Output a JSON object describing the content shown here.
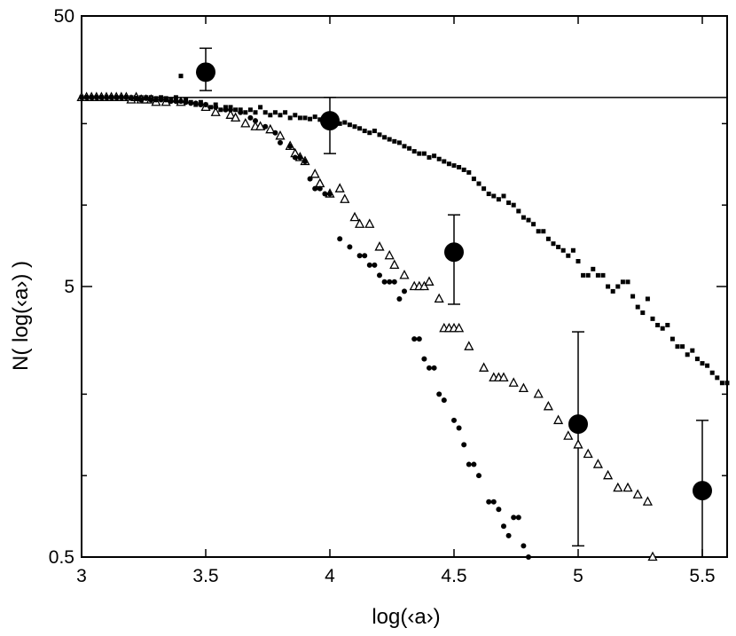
{
  "chart_data": {
    "type": "scatter",
    "xlabel": "log(‹a›)",
    "ylabel": "N( log(‹a›) )",
    "xlim": [
      3,
      5.6
    ],
    "ylim": [
      0.5,
      50
    ],
    "yscale": "log",
    "grid": false,
    "legend": "none",
    "x_ticks": [
      {
        "value": 3,
        "label": "3"
      },
      {
        "value": 3.5,
        "label": "3.5"
      },
      {
        "value": 4,
        "label": "4"
      },
      {
        "value": 4.5,
        "label": "4.5"
      },
      {
        "value": 5,
        "label": "5"
      },
      {
        "value": 5.5,
        "label": "5.5"
      }
    ],
    "y_ticks_major": [
      {
        "value": 0.5,
        "label": "0.5"
      },
      {
        "value": 5,
        "label": "5"
      },
      {
        "value": 50,
        "label": "50"
      }
    ],
    "y_ticks_minor": [
      1,
      2,
      10,
      20
    ],
    "reference_line": {
      "y": 25
    },
    "series": [
      {
        "marker": "large-circle-errorbar",
        "color": "#000000",
        "points": [
          {
            "x": 3.5,
            "y": 31,
            "ylo": 26.5,
            "yhi": 38
          },
          {
            "x": 4.0,
            "y": 20.5,
            "ylo": 15.5,
            "yhi": 25.0
          },
          {
            "x": 4.5,
            "y": 6.7,
            "ylo": 4.3,
            "yhi": 9.2
          },
          {
            "x": 5.0,
            "y": 1.55,
            "ylo": 0.55,
            "yhi": 3.4
          },
          {
            "x": 5.5,
            "y": 0.88,
            "ylo": 0.3,
            "yhi": 1.6
          }
        ]
      },
      {
        "marker": "small-square",
        "color": "#000000",
        "points": [
          [
            3.0,
            25
          ],
          [
            3.02,
            25
          ],
          [
            3.04,
            25
          ],
          [
            3.06,
            25
          ],
          [
            3.08,
            25
          ],
          [
            3.1,
            25
          ],
          [
            3.12,
            25
          ],
          [
            3.14,
            25
          ],
          [
            3.16,
            25
          ],
          [
            3.18,
            25
          ],
          [
            3.2,
            25
          ],
          [
            3.22,
            25
          ],
          [
            3.24,
            25
          ],
          [
            3.26,
            25
          ],
          [
            3.28,
            25
          ],
          [
            3.3,
            24.8
          ],
          [
            3.32,
            25
          ],
          [
            3.34,
            24.8
          ],
          [
            3.36,
            24.5
          ],
          [
            3.38,
            25
          ],
          [
            3.4,
            30
          ],
          [
            3.42,
            24.5
          ],
          [
            3.44,
            24
          ],
          [
            3.46,
            23.5
          ],
          [
            3.48,
            24
          ],
          [
            3.5,
            23.5
          ],
          [
            3.52,
            23
          ],
          [
            3.54,
            23.5
          ],
          [
            3.56,
            22.5
          ],
          [
            3.58,
            23
          ],
          [
            3.6,
            23
          ],
          [
            3.62,
            22.5
          ],
          [
            3.64,
            22.5
          ],
          [
            3.66,
            22
          ],
          [
            3.68,
            22.5
          ],
          [
            3.7,
            22
          ],
          [
            3.72,
            23
          ],
          [
            3.74,
            22
          ],
          [
            3.76,
            21.5
          ],
          [
            3.78,
            22
          ],
          [
            3.8,
            21.5
          ],
          [
            3.82,
            22
          ],
          [
            3.84,
            21
          ],
          [
            3.86,
            21.5
          ],
          [
            3.88,
            21
          ],
          [
            3.9,
            21
          ],
          [
            3.92,
            20.8
          ],
          [
            3.94,
            21.2
          ],
          [
            3.96,
            20.7
          ],
          [
            3.98,
            20.5
          ],
          [
            4.0,
            20
          ],
          [
            4.02,
            20.5
          ],
          [
            4.04,
            20
          ],
          [
            4.06,
            20.2
          ],
          [
            4.08,
            19.8
          ],
          [
            4.1,
            19.5
          ],
          [
            4.12,
            19.2
          ],
          [
            4.14,
            18.8
          ],
          [
            4.16,
            18.5
          ],
          [
            4.18,
            18.8
          ],
          [
            4.2,
            18.2
          ],
          [
            4.22,
            17.8
          ],
          [
            4.24,
            17.5
          ],
          [
            4.26,
            17.2
          ],
          [
            4.28,
            17
          ],
          [
            4.3,
            16.5
          ],
          [
            4.32,
            16.2
          ],
          [
            4.34,
            15.8
          ],
          [
            4.36,
            15.5
          ],
          [
            4.38,
            15.5
          ],
          [
            4.4,
            15
          ],
          [
            4.42,
            15.2
          ],
          [
            4.44,
            14.8
          ],
          [
            4.46,
            14.5
          ],
          [
            4.48,
            14.2
          ],
          [
            4.5,
            14
          ],
          [
            4.52,
            13.8
          ],
          [
            4.54,
            13.5
          ],
          [
            4.56,
            13.2
          ],
          [
            4.58,
            12.5
          ],
          [
            4.6,
            12
          ],
          [
            4.62,
            11.5
          ],
          [
            4.64,
            11
          ],
          [
            4.66,
            10.8
          ],
          [
            4.68,
            10.5
          ],
          [
            4.7,
            10.8
          ],
          [
            4.72,
            10.2
          ],
          [
            4.74,
            10
          ],
          [
            4.76,
            9.5
          ],
          [
            4.78,
            9
          ],
          [
            4.8,
            8.8
          ],
          [
            4.82,
            8.5
          ],
          [
            4.84,
            8
          ],
          [
            4.86,
            8
          ],
          [
            4.88,
            7.5
          ],
          [
            4.9,
            7.2
          ],
          [
            4.92,
            7
          ],
          [
            4.94,
            6.8
          ],
          [
            4.96,
            6.5
          ],
          [
            4.98,
            6.8
          ],
          [
            5.0,
            6.2
          ],
          [
            5.02,
            5.5
          ],
          [
            5.04,
            5.5
          ],
          [
            5.06,
            5.8
          ],
          [
            5.08,
            5.5
          ],
          [
            5.1,
            5.5
          ],
          [
            5.12,
            5
          ],
          [
            5.14,
            4.8
          ],
          [
            5.16,
            5
          ],
          [
            5.18,
            5.2
          ],
          [
            5.2,
            5.2
          ],
          [
            5.22,
            4.6
          ],
          [
            5.24,
            4.2
          ],
          [
            5.26,
            4
          ],
          [
            5.28,
            4.5
          ],
          [
            5.3,
            3.8
          ],
          [
            5.32,
            3.6
          ],
          [
            5.34,
            3.5
          ],
          [
            5.36,
            3.6
          ],
          [
            5.38,
            3.2
          ],
          [
            5.4,
            3
          ],
          [
            5.42,
            3
          ],
          [
            5.44,
            2.8
          ],
          [
            5.46,
            2.9
          ],
          [
            5.48,
            2.7
          ],
          [
            5.5,
            2.6
          ],
          [
            5.52,
            2.55
          ],
          [
            5.54,
            2.4
          ],
          [
            5.56,
            2.3
          ],
          [
            5.58,
            2.2
          ],
          [
            5.6,
            2.2
          ]
        ]
      },
      {
        "marker": "open-triangle",
        "color": "#000000",
        "points": [
          [
            3.0,
            25
          ],
          [
            3.02,
            25
          ],
          [
            3.04,
            25
          ],
          [
            3.06,
            25
          ],
          [
            3.08,
            25
          ],
          [
            3.1,
            25
          ],
          [
            3.12,
            25
          ],
          [
            3.14,
            25
          ],
          [
            3.16,
            25
          ],
          [
            3.18,
            25
          ],
          [
            3.2,
            24.5
          ],
          [
            3.22,
            25
          ],
          [
            3.24,
            24.5
          ],
          [
            3.26,
            24.5
          ],
          [
            3.28,
            24.5
          ],
          [
            3.3,
            24
          ],
          [
            3.34,
            24
          ],
          [
            3.4,
            24
          ],
          [
            3.5,
            23
          ],
          [
            3.54,
            22
          ],
          [
            3.6,
            21.5
          ],
          [
            3.62,
            21
          ],
          [
            3.66,
            20
          ],
          [
            3.7,
            19.5
          ],
          [
            3.72,
            19.5
          ],
          [
            3.76,
            19
          ],
          [
            3.8,
            18
          ],
          [
            3.84,
            16.5
          ],
          [
            3.86,
            15.5
          ],
          [
            3.88,
            15
          ],
          [
            3.9,
            14.5
          ],
          [
            3.94,
            13
          ],
          [
            3.96,
            12
          ],
          [
            4.0,
            11
          ],
          [
            4.04,
            11.5
          ],
          [
            4.06,
            10.5
          ],
          [
            4.1,
            9
          ],
          [
            4.12,
            8.5
          ],
          [
            4.16,
            8.5
          ],
          [
            4.2,
            7
          ],
          [
            4.24,
            6.5
          ],
          [
            4.26,
            6
          ],
          [
            4.3,
            5.5
          ],
          [
            4.34,
            5
          ],
          [
            4.36,
            5
          ],
          [
            4.38,
            5
          ],
          [
            4.4,
            5.2
          ],
          [
            4.44,
            4.5
          ],
          [
            4.46,
            3.5
          ],
          [
            4.48,
            3.5
          ],
          [
            4.5,
            3.5
          ],
          [
            4.52,
            3.5
          ],
          [
            4.56,
            3
          ],
          [
            4.62,
            2.5
          ],
          [
            4.66,
            2.3
          ],
          [
            4.68,
            2.3
          ],
          [
            4.7,
            2.3
          ],
          [
            4.74,
            2.2
          ],
          [
            4.78,
            2.1
          ],
          [
            4.84,
            2.0
          ],
          [
            4.88,
            1.8
          ],
          [
            4.92,
            1.6
          ],
          [
            4.96,
            1.4
          ],
          [
            5.0,
            1.3
          ],
          [
            5.04,
            1.2
          ],
          [
            5.08,
            1.1
          ],
          [
            5.12,
            1.0
          ],
          [
            5.16,
            0.9
          ],
          [
            5.2,
            0.9
          ],
          [
            5.24,
            0.85
          ],
          [
            5.28,
            0.8
          ],
          [
            5.3,
            0.5
          ]
        ]
      },
      {
        "marker": "small-filled-circle",
        "color": "#000000",
        "points": [
          [
            3.0,
            25
          ],
          [
            3.02,
            25
          ],
          [
            3.04,
            25
          ],
          [
            3.06,
            25
          ],
          [
            3.08,
            25
          ],
          [
            3.1,
            25
          ],
          [
            3.12,
            25
          ],
          [
            3.14,
            25
          ],
          [
            3.16,
            25
          ],
          [
            3.18,
            25
          ],
          [
            3.2,
            24.8
          ],
          [
            3.22,
            24.8
          ],
          [
            3.24,
            24.5
          ],
          [
            3.26,
            24.8
          ],
          [
            3.28,
            24.5
          ],
          [
            3.3,
            24.5
          ],
          [
            3.32,
            24.5
          ],
          [
            3.34,
            24.5
          ],
          [
            3.36,
            24.2
          ],
          [
            3.38,
            24.2
          ],
          [
            3.4,
            24.2
          ],
          [
            3.42,
            24
          ],
          [
            3.44,
            23.8
          ],
          [
            3.46,
            23.8
          ],
          [
            3.48,
            23.5
          ],
          [
            3.5,
            23.5
          ],
          [
            3.54,
            23
          ],
          [
            3.58,
            22.5
          ],
          [
            3.6,
            22.5
          ],
          [
            3.64,
            22
          ],
          [
            3.68,
            21
          ],
          [
            3.7,
            20.5
          ],
          [
            3.74,
            19.5
          ],
          [
            3.78,
            18.5
          ],
          [
            3.8,
            17
          ],
          [
            3.84,
            16.5
          ],
          [
            3.86,
            15
          ],
          [
            3.88,
            15
          ],
          [
            3.9,
            14.5
          ],
          [
            3.92,
            12.5
          ],
          [
            3.94,
            11.5
          ],
          [
            3.96,
            11.5
          ],
          [
            3.98,
            11
          ],
          [
            4.0,
            11
          ],
          [
            4.04,
            7.5
          ],
          [
            4.08,
            7
          ],
          [
            4.12,
            6.5
          ],
          [
            4.14,
            6.5
          ],
          [
            4.16,
            6
          ],
          [
            4.18,
            6
          ],
          [
            4.2,
            5.5
          ],
          [
            4.22,
            5.2
          ],
          [
            4.24,
            5.2
          ],
          [
            4.26,
            5.2
          ],
          [
            4.28,
            4.5
          ],
          [
            4.3,
            4.8
          ],
          [
            4.34,
            3.2
          ],
          [
            4.36,
            3.2
          ],
          [
            4.38,
            2.7
          ],
          [
            4.4,
            2.5
          ],
          [
            4.42,
            2.5
          ],
          [
            4.44,
            2.0
          ],
          [
            4.46,
            1.9
          ],
          [
            4.5,
            1.6
          ],
          [
            4.52,
            1.5
          ],
          [
            4.54,
            1.3
          ],
          [
            4.56,
            1.1
          ],
          [
            4.58,
            1.1
          ],
          [
            4.6,
            1.0
          ],
          [
            4.64,
            0.8
          ],
          [
            4.66,
            0.8
          ],
          [
            4.68,
            0.75
          ],
          [
            4.7,
            0.65
          ],
          [
            4.72,
            0.6
          ],
          [
            4.74,
            0.7
          ],
          [
            4.76,
            0.7
          ],
          [
            4.78,
            0.55
          ],
          [
            4.8,
            0.5
          ]
        ]
      }
    ]
  }
}
